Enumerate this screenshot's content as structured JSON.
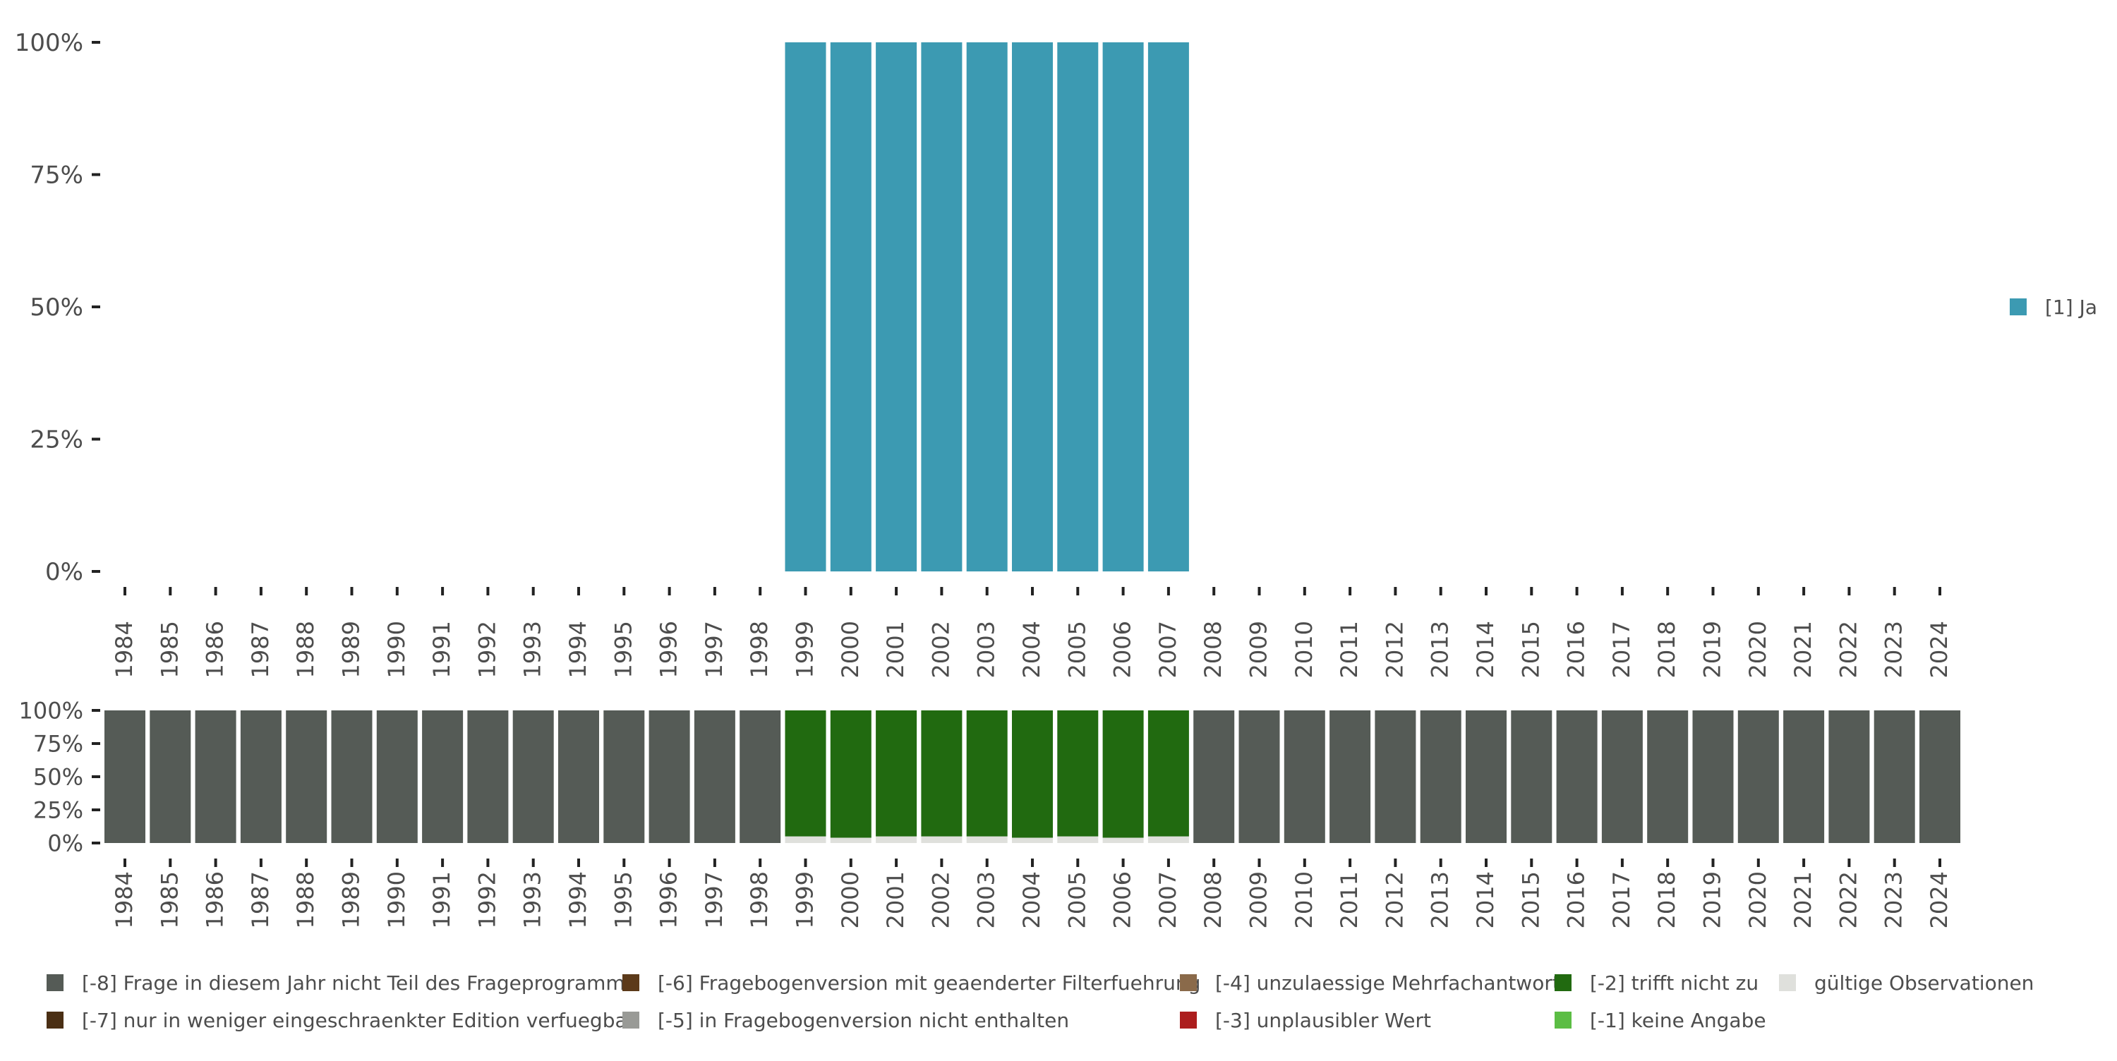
{
  "colors": {
    "ja": "#3c9ab2",
    "frage_nicht_teil": "#555b56",
    "nur_eingeschraenkt": "#4a2f14",
    "filterfuehrung": "#5c3a1a",
    "nicht_enthalten": "#999a96",
    "mehrfachantwort": "#8a6a4a",
    "unplausibel": "#ac1d1d",
    "trifft_nicht_zu": "#216a10",
    "keine_angabe": "#5bbd44",
    "gueltig": "#dfe0dc",
    "axis_text": "#4d4d4d",
    "tick": "#222222"
  },
  "chart_data": [
    {
      "type": "bar",
      "stacked": true,
      "ylabel_format": "percent",
      "ylim": [
        0,
        100
      ],
      "yticks": [
        "0%",
        "25%",
        "50%",
        "75%",
        "100%"
      ],
      "categories": [
        "1984",
        "1985",
        "1986",
        "1987",
        "1988",
        "1989",
        "1990",
        "1991",
        "1992",
        "1993",
        "1994",
        "1995",
        "1996",
        "1997",
        "1998",
        "1999",
        "2000",
        "2001",
        "2002",
        "2003",
        "2004",
        "2005",
        "2006",
        "2007",
        "2008",
        "2009",
        "2010",
        "2011",
        "2012",
        "2013",
        "2014",
        "2015",
        "2016",
        "2017",
        "2018",
        "2019",
        "2020",
        "2021",
        "2022",
        "2023",
        "2024"
      ],
      "series": [
        {
          "name": "[1] Ja",
          "color_key": "ja",
          "values": [
            0,
            0,
            0,
            0,
            0,
            0,
            0,
            0,
            0,
            0,
            0,
            0,
            0,
            0,
            0,
            100,
            100,
            100,
            100,
            100,
            100,
            100,
            100,
            100,
            0,
            0,
            0,
            0,
            0,
            0,
            0,
            0,
            0,
            0,
            0,
            0,
            0,
            0,
            0,
            0,
            0
          ]
        }
      ],
      "legend": [
        {
          "label": "[1] Ja",
          "color_key": "ja"
        }
      ],
      "legend_position": "right"
    },
    {
      "type": "bar",
      "stacked": true,
      "ylabel_format": "percent",
      "ylim": [
        0,
        100
      ],
      "yticks": [
        "0%",
        "25%",
        "50%",
        "75%",
        "100%"
      ],
      "categories": [
        "1984",
        "1985",
        "1986",
        "1987",
        "1988",
        "1989",
        "1990",
        "1991",
        "1992",
        "1993",
        "1994",
        "1995",
        "1996",
        "1997",
        "1998",
        "1999",
        "2000",
        "2001",
        "2002",
        "2003",
        "2004",
        "2005",
        "2006",
        "2007",
        "2008",
        "2009",
        "2010",
        "2011",
        "2012",
        "2013",
        "2014",
        "2015",
        "2016",
        "2017",
        "2018",
        "2019",
        "2020",
        "2021",
        "2022",
        "2023",
        "2024"
      ],
      "series": [
        {
          "name": "gültige Observationen",
          "color_key": "gueltig",
          "values": [
            0,
            0,
            0,
            0,
            0,
            0,
            0,
            0,
            0,
            0,
            0,
            0,
            0,
            0,
            0,
            5,
            4,
            5,
            5,
            5,
            4,
            5,
            4,
            5,
            0,
            0,
            0,
            0,
            0,
            0,
            0,
            0,
            0,
            0,
            0,
            0,
            0,
            0,
            0,
            0,
            0
          ]
        },
        {
          "name": "[-2] trifft nicht zu",
          "color_key": "trifft_nicht_zu",
          "values": [
            0,
            0,
            0,
            0,
            0,
            0,
            0,
            0,
            0,
            0,
            0,
            0,
            0,
            0,
            0,
            95,
            96,
            95,
            95,
            95,
            96,
            95,
            96,
            95,
            0,
            0,
            0,
            0,
            0,
            0,
            0,
            0,
            0,
            0,
            0,
            0,
            0,
            0,
            0,
            0,
            0
          ]
        },
        {
          "name": "[-8] Frage in diesem Jahr nicht Teil des Frageprogramms",
          "color_key": "frage_nicht_teil",
          "values": [
            100,
            100,
            100,
            100,
            100,
            100,
            100,
            100,
            100,
            100,
            100,
            100,
            100,
            100,
            100,
            0,
            0,
            0,
            0,
            0,
            0,
            0,
            0,
            0,
            100,
            100,
            100,
            100,
            100,
            100,
            100,
            100,
            100,
            100,
            100,
            100,
            100,
            100,
            100,
            100,
            100
          ]
        }
      ],
      "legend": [
        {
          "label": "[-8] Frage in diesem Jahr nicht Teil des Frageprogramms",
          "color_key": "frage_nicht_teil"
        },
        {
          "label": "[-7] nur in weniger eingeschraenkter Edition verfuegbar",
          "color_key": "nur_eingeschraenkt"
        },
        {
          "label": "[-6] Fragebogenversion mit geaenderter Filterfuehrung",
          "color_key": "filterfuehrung"
        },
        {
          "label": "[-5] in Fragebogenversion nicht enthalten",
          "color_key": "nicht_enthalten"
        },
        {
          "label": "[-4] unzulaessige Mehrfachantwort",
          "color_key": "mehrfachantwort"
        },
        {
          "label": "[-3] unplausibler Wert",
          "color_key": "unplausibel"
        },
        {
          "label": "[-2] trifft nicht zu",
          "color_key": "trifft_nicht_zu"
        },
        {
          "label": "[-1] keine Angabe",
          "color_key": "keine_angabe"
        },
        {
          "label": "gültige Observationen",
          "color_key": "gueltig"
        }
      ],
      "legend_position": "bottom"
    }
  ]
}
